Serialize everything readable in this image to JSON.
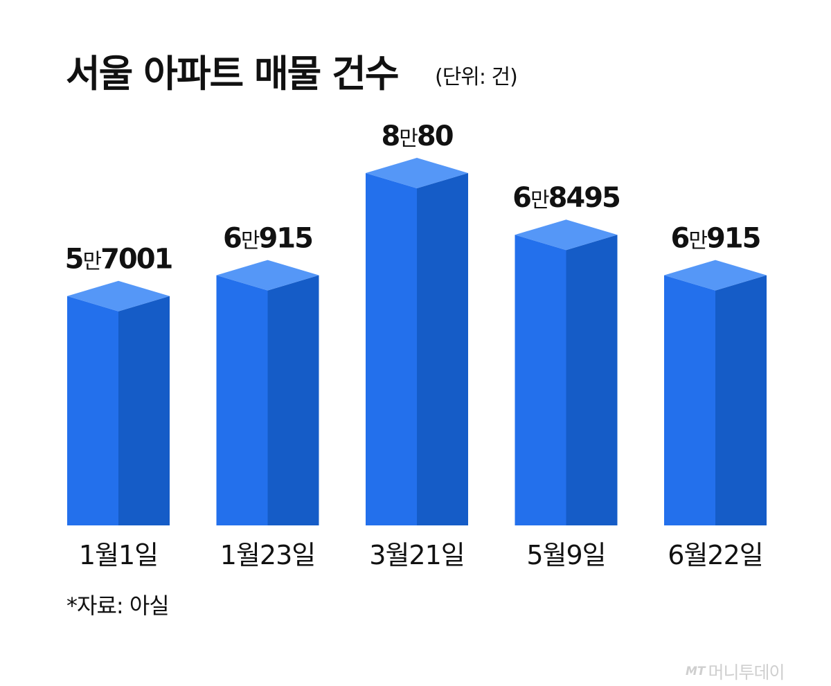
{
  "header": {
    "title": "서울 아파트 매물 건수",
    "unit": "(단위: 건)"
  },
  "footer": {
    "source": "*자료: 아실",
    "brand_mark": "MT",
    "brand_name": "머니투데이"
  },
  "colors": {
    "bar_front": "#2370EC",
    "bar_side": "#155CC7",
    "bar_top": "#5597F7",
    "text": "#111111"
  },
  "chart_data": {
    "type": "bar",
    "title": "서울 아파트 매물 건수",
    "unit": "건",
    "categories": [
      "1월1일",
      "1월23일",
      "3월21일",
      "5월9일",
      "6월22일"
    ],
    "values": [
      57001,
      60915,
      80080,
      68495,
      60915
    ],
    "value_labels": [
      {
        "prefix": "5",
        "man": "만",
        "suffix": "7001"
      },
      {
        "prefix": "6",
        "man": "만",
        "suffix": "915"
      },
      {
        "prefix": "8",
        "man": "만",
        "suffix": "80"
      },
      {
        "prefix": "6",
        "man": "만",
        "suffix": "8495"
      },
      {
        "prefix": "6",
        "man": "만",
        "suffix": "915"
      }
    ],
    "xlabel": "",
    "ylabel": "",
    "style": "3d-column",
    "grid": false,
    "legend": "none"
  }
}
